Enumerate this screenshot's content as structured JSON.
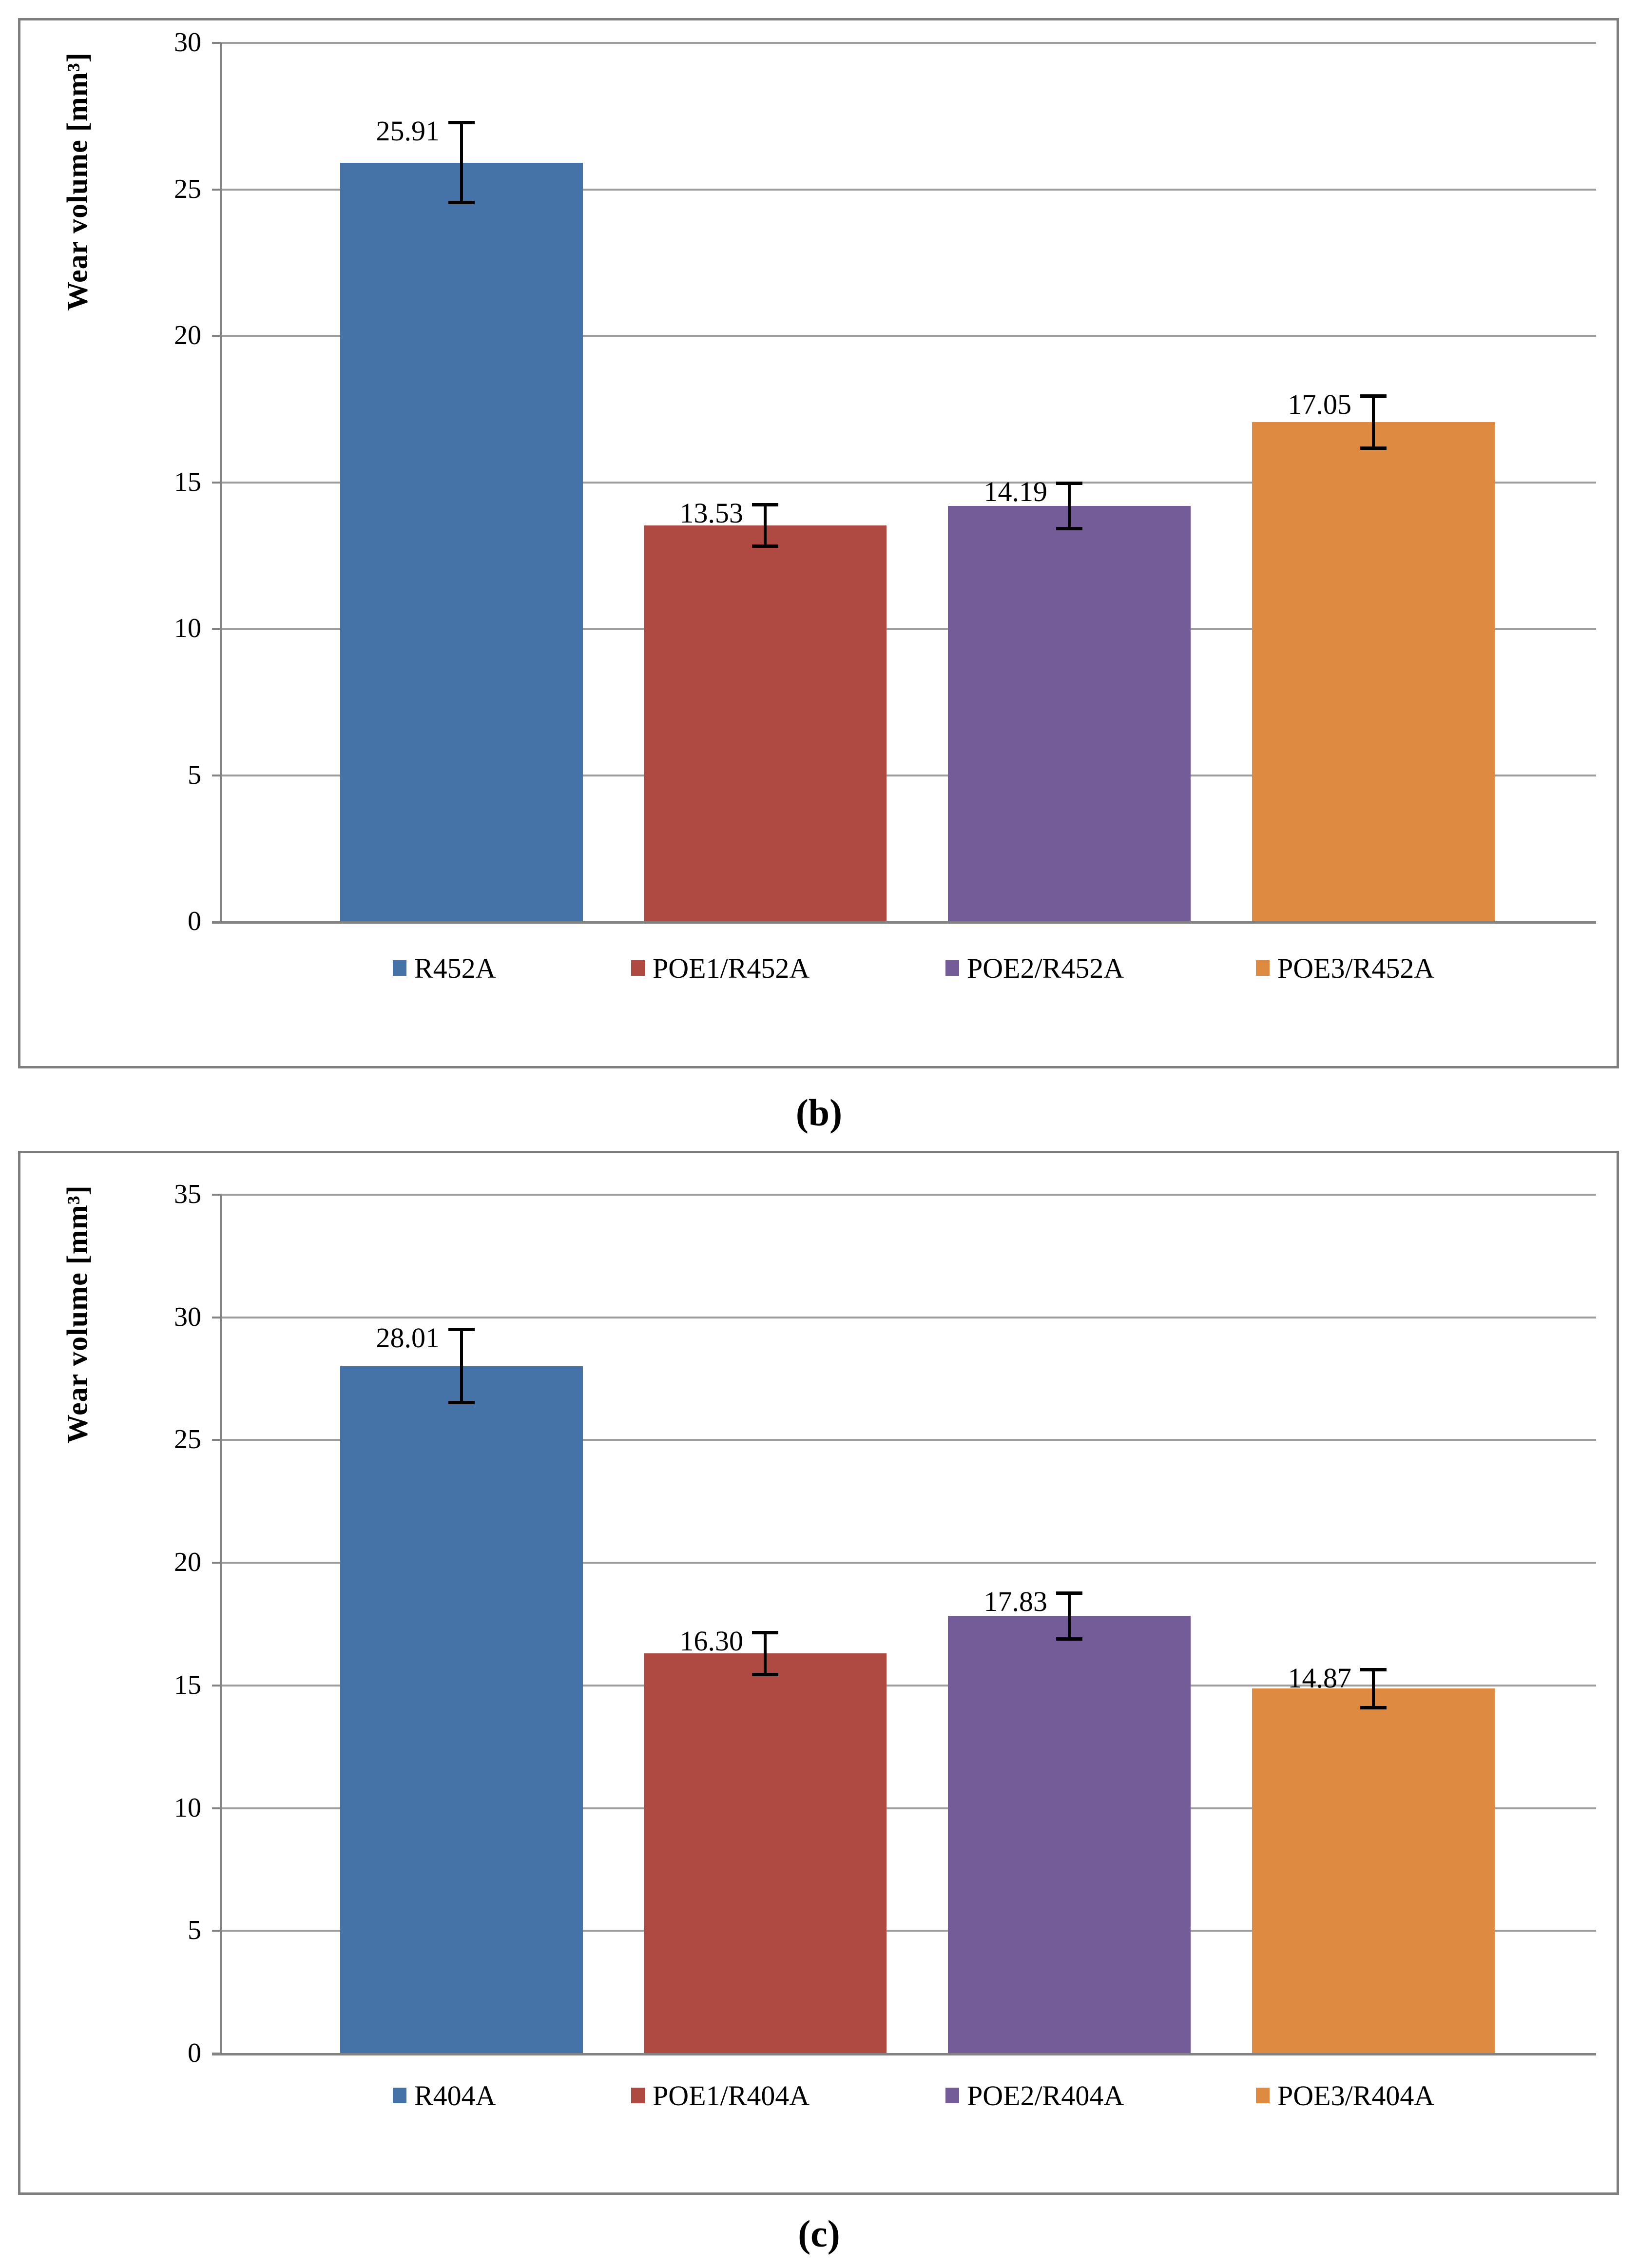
{
  "figure": {
    "background": "#ffffff",
    "border_color": "#7e7e7e",
    "gridline_color": "#9d9d9d",
    "axis_color": "#828282"
  },
  "chart_data": [
    {
      "type": "bar",
      "caption": "(b)",
      "title": "",
      "xlabel": "",
      "ylabel": "Wear volume [mm³]",
      "ylim": [
        0,
        30
      ],
      "ytick_step": 5,
      "ytick_labels": [
        "0",
        "5",
        "10",
        "15",
        "20",
        "25",
        "30"
      ],
      "grid": true,
      "legend_position": "bottom",
      "categories": [
        "R452A",
        "POE1/R452A",
        "POE2/R452A",
        "POE3/R452A"
      ],
      "values": [
        25.91,
        13.53,
        14.19,
        17.05
      ],
      "value_labels": [
        "25.91",
        "13.53",
        "14.19",
        "17.05"
      ],
      "errors": [
        1.37,
        0.72,
        0.78,
        0.9
      ],
      "colors": [
        "#4573A8",
        "#AF4A42",
        "#745C98",
        "#DE8A41"
      ]
    },
    {
      "type": "bar",
      "caption": "(c)",
      "title": "",
      "xlabel": "",
      "ylabel": "Wear volume [mm³]",
      "ylim": [
        0,
        35
      ],
      "ytick_step": 5,
      "ytick_labels": [
        "0",
        "5",
        "10",
        "15",
        "20",
        "25",
        "30",
        "35"
      ],
      "grid": true,
      "legend_position": "bottom",
      "categories": [
        "R404A",
        "POE1/R404A",
        "POE2/R404A",
        "POE3/R404A"
      ],
      "values": [
        28.01,
        16.3,
        17.83,
        14.87
      ],
      "value_labels": [
        "28.01",
        "16.30",
        "17.83",
        "14.87"
      ],
      "errors": [
        1.5,
        0.87,
        0.95,
        0.79
      ],
      "colors": [
        "#4573A8",
        "#AF4A42",
        "#745C98",
        "#DE8A41"
      ]
    }
  ]
}
